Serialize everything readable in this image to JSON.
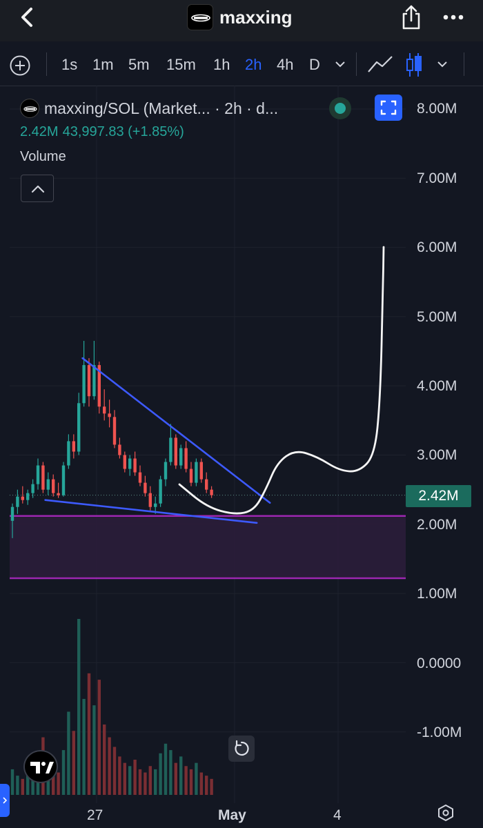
{
  "header": {
    "title": "maxxing",
    "logo_icon": "maxxing-logo-icon",
    "back_icon": "chevron-left-icon",
    "share_icon": "share-icon",
    "more_icon": "more-dots-icon"
  },
  "toolbar": {
    "intervals": [
      "1s",
      "1m",
      "5m",
      "15m",
      "1h",
      "2h",
      "4h",
      "D"
    ],
    "active_interval": "2h",
    "add_icon": "plus-circle-icon",
    "interval_dropdown_icon": "chevron-down-icon",
    "line_chart_icon": "line-chart-icon",
    "candle_icon": "candlestick-icon",
    "chart_type_dropdown_icon": "chevron-down-icon"
  },
  "legend": {
    "title": "maxxing/SOL (Market... · 2h · d...",
    "price": "2.42M",
    "change": "43,997.83 (+1.85%)",
    "volume_label": "Volume",
    "status": "live",
    "up_color": "#26a69a",
    "down_color": "#ef5350"
  },
  "y_axis": {
    "labels": [
      "8.00M",
      "7.00M",
      "6.00M",
      "5.00M",
      "4.00M",
      "3.00M",
      "2.00M",
      "1.00M",
      "0.0000",
      "-1.00M"
    ],
    "current_price_label": "2.42M",
    "current_price_color": "#1b6b5d"
  },
  "x_axis": {
    "labels": [
      "27",
      "May",
      "4"
    ],
    "bold_labels": [
      "May"
    ]
  },
  "chart_data": {
    "type": "candlestick",
    "interval": "2h",
    "ylim": [
      -1500000,
      8500000
    ],
    "current_price": 2420000,
    "candles": [
      {
        "o": 2.05,
        "h": 2.3,
        "l": 1.8,
        "c": 2.25
      },
      {
        "o": 2.25,
        "h": 2.5,
        "l": 2.15,
        "c": 2.4
      },
      {
        "o": 2.4,
        "h": 2.55,
        "l": 2.3,
        "c": 2.35
      },
      {
        "o": 2.35,
        "h": 2.5,
        "l": 2.28,
        "c": 2.45
      },
      {
        "o": 2.45,
        "h": 2.65,
        "l": 2.38,
        "c": 2.58
      },
      {
        "o": 2.58,
        "h": 2.95,
        "l": 2.5,
        "c": 2.85
      },
      {
        "o": 2.85,
        "h": 2.9,
        "l": 2.45,
        "c": 2.5
      },
      {
        "o": 2.5,
        "h": 2.75,
        "l": 2.42,
        "c": 2.65
      },
      {
        "o": 2.65,
        "h": 2.72,
        "l": 2.4,
        "c": 2.45
      },
      {
        "o": 2.45,
        "h": 2.6,
        "l": 2.38,
        "c": 2.42
      },
      {
        "o": 2.42,
        "h": 2.9,
        "l": 2.4,
        "c": 2.85
      },
      {
        "o": 2.85,
        "h": 3.3,
        "l": 2.8,
        "c": 3.2
      },
      {
        "o": 3.2,
        "h": 3.3,
        "l": 2.95,
        "c": 3.05
      },
      {
        "o": 3.05,
        "h": 3.9,
        "l": 3.0,
        "c": 3.75
      },
      {
        "o": 3.75,
        "h": 4.65,
        "l": 3.7,
        "c": 4.3
      },
      {
        "o": 4.3,
        "h": 4.4,
        "l": 3.7,
        "c": 3.85
      },
      {
        "o": 3.85,
        "h": 4.65,
        "l": 3.8,
        "c": 4.3
      },
      {
        "o": 4.3,
        "h": 4.35,
        "l": 3.6,
        "c": 3.7
      },
      {
        "o": 3.7,
        "h": 3.95,
        "l": 3.5,
        "c": 3.6
      },
      {
        "o": 3.6,
        "h": 3.8,
        "l": 3.4,
        "c": 3.55
      },
      {
        "o": 3.55,
        "h": 3.65,
        "l": 3.1,
        "c": 3.15
      },
      {
        "o": 3.15,
        "h": 3.25,
        "l": 2.95,
        "c": 3.0
      },
      {
        "o": 3.0,
        "h": 3.05,
        "l": 2.75,
        "c": 2.8
      },
      {
        "o": 2.8,
        "h": 3.0,
        "l": 2.7,
        "c": 2.95
      },
      {
        "o": 2.95,
        "h": 3.05,
        "l": 2.7,
        "c": 2.75
      },
      {
        "o": 2.75,
        "h": 2.85,
        "l": 2.55,
        "c": 2.6
      },
      {
        "o": 2.6,
        "h": 2.7,
        "l": 2.4,
        "c": 2.45
      },
      {
        "o": 2.45,
        "h": 2.55,
        "l": 2.2,
        "c": 2.25
      },
      {
        "o": 2.25,
        "h": 2.4,
        "l": 2.15,
        "c": 2.3
      },
      {
        "o": 2.3,
        "h": 2.7,
        "l": 2.25,
        "c": 2.65
      },
      {
        "o": 2.65,
        "h": 2.95,
        "l": 2.55,
        "c": 2.9
      },
      {
        "o": 2.9,
        "h": 3.45,
        "l": 2.85,
        "c": 3.25
      },
      {
        "o": 3.25,
        "h": 3.3,
        "l": 2.8,
        "c": 2.85
      },
      {
        "o": 2.85,
        "h": 3.15,
        "l": 2.8,
        "c": 3.1
      },
      {
        "o": 3.1,
        "h": 3.2,
        "l": 2.75,
        "c": 2.8
      },
      {
        "o": 2.8,
        "h": 2.9,
        "l": 2.55,
        "c": 2.6
      },
      {
        "o": 2.6,
        "h": 2.95,
        "l": 2.55,
        "c": 2.9
      },
      {
        "o": 2.9,
        "h": 2.95,
        "l": 2.6,
        "c": 2.65
      },
      {
        "o": 2.65,
        "h": 2.75,
        "l": 2.45,
        "c": 2.5
      },
      {
        "o": 2.5,
        "h": 2.55,
        "l": 2.38,
        "c": 2.42
      }
    ],
    "volume": [
      8,
      6,
      5,
      7,
      9,
      12,
      18,
      10,
      8,
      7,
      14,
      26,
      20,
      55,
      30,
      38,
      28,
      36,
      22,
      18,
      15,
      12,
      10,
      9,
      11,
      8,
      7,
      9,
      8,
      13,
      16,
      14,
      10,
      12,
      9,
      8,
      10,
      7,
      6,
      5
    ],
    "annotations": {
      "falling_wedge_upper": {
        "from_candle": 14,
        "from_price": 4.4,
        "to_candle": 43,
        "to_price": 2.3
      },
      "falling_wedge_lower": {
        "from_candle": 4,
        "from_price": 2.35,
        "to_candle": 43,
        "to_price": 2.02
      },
      "demand_zone": {
        "top": 2.12,
        "bottom": 1.22,
        "color": "#9c27b0"
      },
      "projection_path": "hand-drawn white curve dipping to ~2.15M then rising to ~3.0M and spiking to ~6.0M"
    }
  },
  "controls": {
    "reset_icon": "reset-icon",
    "tradingview_logo": "tradingview-logo-icon",
    "settings_icon": "settings-hex-icon",
    "fullscreen_icon": "fullscreen-icon",
    "collapse_icon": "chevron-up-icon"
  }
}
